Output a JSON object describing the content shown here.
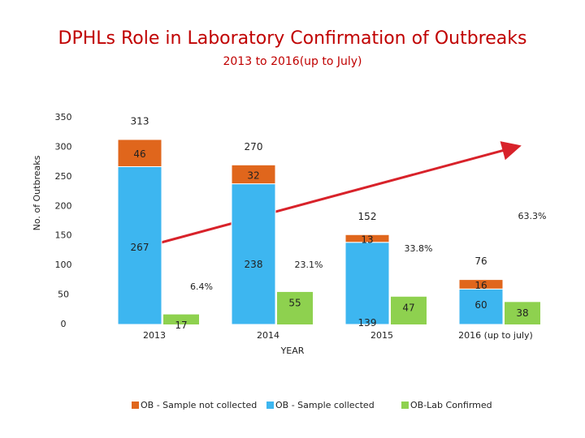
{
  "chart_data": {
    "type": "bar",
    "title": "DPHLs Role in Laboratory Confirmation of Outbreaks",
    "subtitle": "2013 to 2016(up to July)",
    "y_label": "No. of Outbreaks",
    "x_label": "YEAR",
    "categories": [
      "2013",
      "2014",
      "2015",
      "2016 (up to july)"
    ],
    "series": [
      {
        "name": "OB - Sample not collected",
        "color": "#e0661c",
        "values": [
          46,
          32,
          13,
          16
        ]
      },
      {
        "name": "OB - Sample collected",
        "color": "#3db6f0",
        "values": [
          267,
          238,
          139,
          60
        ]
      },
      {
        "name": "OB-Lab Confirmed",
        "color": "#8ed14f",
        "values": [
          17,
          55,
          47,
          38
        ]
      }
    ],
    "totals": [
      313,
      270,
      152,
      76
    ],
    "rates": [
      6.4,
      23.1,
      33.8,
      63.3
    ],
    "rate_labels": [
      "6.4%",
      "23.1%",
      "33.8%",
      "63.3%"
    ],
    "ylim": [
      0,
      350
    ],
    "yticks": [
      0,
      50,
      100,
      150,
      200,
      250,
      300,
      350
    ],
    "grid": false
  }
}
